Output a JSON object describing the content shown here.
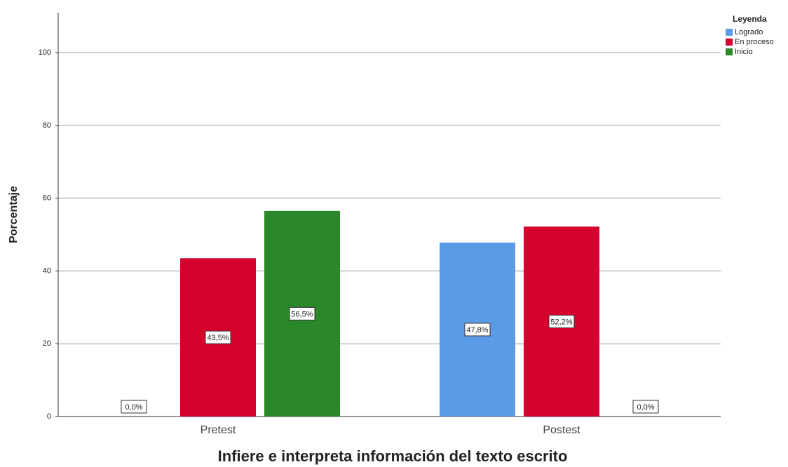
{
  "chart_data": {
    "type": "bar",
    "x_label": "Infiere e interpreta información del texto escrito",
    "y_label": "Porcentaje",
    "legend_title": "Leyenda",
    "legend_position": "top-right",
    "categories": [
      "Pretest",
      "Postest"
    ],
    "series": [
      {
        "name": "Logrado",
        "color": "#5b9be6",
        "values": [
          0,
          47.8
        ],
        "value_labels": [
          "0,0%",
          "47,8%"
        ]
      },
      {
        "name": "En proceso",
        "color": "#d5002b",
        "values": [
          43.5,
          52.2
        ],
        "value_labels": [
          "43,5%",
          "52,2%"
        ]
      },
      {
        "name": "Inicio",
        "color": "#2a882a",
        "values": [
          56.5,
          0
        ],
        "value_labels": [
          "56,5%",
          "0,0%"
        ]
      }
    ],
    "ylim": [
      0,
      111
    ],
    "yticks": [
      0,
      20,
      40,
      60,
      80,
      100
    ],
    "grid": true
  }
}
